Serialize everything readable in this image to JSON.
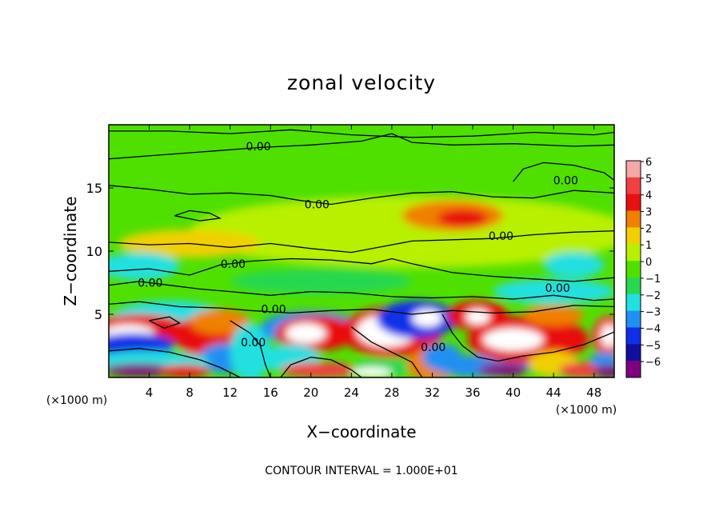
{
  "chart_data": {
    "type": "heatmap",
    "title": "zonal velocity",
    "xlabel": "X−coordinate",
    "ylabel": "Z−coordinate",
    "x_unit_left": "(×1000 m)",
    "x_unit_right": "(×1000 m)",
    "footer": "CONTOUR INTERVAL = 1.000E+01",
    "xlim": [
      0,
      50
    ],
    "ylim": [
      0,
      20
    ],
    "x_ticks": [
      4,
      8,
      12,
      16,
      20,
      24,
      28,
      32,
      36,
      40,
      44,
      48
    ],
    "y_ticks": [
      5,
      10,
      15
    ],
    "colorbar": {
      "levels": [
        6,
        5,
        4,
        3,
        2,
        1,
        0,
        -1,
        -2,
        -3,
        -4,
        -5,
        -6
      ],
      "labels": [
        "6",
        "5",
        "4",
        "3",
        "2",
        "1",
        "0",
        "−1",
        "−2",
        "−3",
        "−4",
        "−5",
        "−6"
      ],
      "colors": [
        "#f5a8a8",
        "#f04040",
        "#e81010",
        "#f08000",
        "#f0d000",
        "#b8f000",
        "#50e000",
        "#28d850",
        "#20e0e0",
        "#2090f0",
        "#1030e8",
        "#1010a0",
        "#800080"
      ]
    },
    "contour_labels": [
      {
        "text": "0.00",
        "x": 14.8,
        "z": 18.3
      },
      {
        "text": "0.00",
        "x": 45.2,
        "z": 15.6
      },
      {
        "text": "0.00",
        "x": 20.6,
        "z": 13.7
      },
      {
        "text": "0.00",
        "x": 38.8,
        "z": 11.2
      },
      {
        "text": "0.00",
        "x": 12.3,
        "z": 9.0
      },
      {
        "text": "0.00",
        "x": 4.1,
        "z": 7.5
      },
      {
        "text": "0.00",
        "x": 44.4,
        "z": 7.1
      },
      {
        "text": "0.00",
        "x": 16.3,
        "z": 5.4
      },
      {
        "text": "0.00",
        "x": 14.3,
        "z": 2.8
      },
      {
        "text": "0.00",
        "x": 32.1,
        "z": 2.4
      }
    ],
    "field_blobs": [
      {
        "x": 25,
        "z": 15.5,
        "rx": 25,
        "rz": 3.5,
        "v": 0
      },
      {
        "x": 30,
        "z": 11.5,
        "rx": 22,
        "rz": 2.8,
        "v": 1
      },
      {
        "x": 34,
        "z": 12.8,
        "rx": 5,
        "rz": 1.2,
        "v": 3
      },
      {
        "x": 35,
        "z": 12.6,
        "rx": 2.5,
        "rz": 0.7,
        "v": 4
      },
      {
        "x": 8,
        "z": 10.6,
        "rx": 7,
        "rz": 1.1,
        "v": 2
      },
      {
        "x": 3,
        "z": 8.8,
        "rx": 4,
        "rz": 1.1,
        "v": -2
      },
      {
        "x": 46,
        "z": 8.9,
        "rx": 3,
        "rz": 1.0,
        "v": -2
      },
      {
        "x": 21,
        "z": 7.6,
        "rx": 9,
        "rz": 1.0,
        "v": -1
      },
      {
        "x": 44,
        "z": 6.8,
        "rx": 6,
        "rz": 1.0,
        "v": -2
      },
      {
        "x": 6,
        "z": 4.5,
        "rx": 6,
        "rz": 1.6,
        "v": -2
      },
      {
        "x": 3,
        "z": 3.7,
        "rx": 5,
        "rz": 1.3,
        "v": 4
      },
      {
        "x": 2,
        "z": 3.5,
        "rx": 2.5,
        "rz": 0.7,
        "v": 6
      },
      {
        "x": 2.5,
        "z": 2.6,
        "rx": 4,
        "rz": 0.9,
        "v": -4
      },
      {
        "x": 9.5,
        "z": 3.3,
        "rx": 3,
        "rz": 1.6,
        "v": 4
      },
      {
        "x": 11,
        "z": 4.4,
        "rx": 3,
        "rz": 1.0,
        "v": 3
      },
      {
        "x": 11.5,
        "z": 1.5,
        "rx": 2.5,
        "rz": 1.2,
        "v": -3
      },
      {
        "x": 4,
        "z": 1.2,
        "rx": 6,
        "rz": 0.9,
        "v": -2
      },
      {
        "x": 3,
        "z": 0.6,
        "rx": 3.5,
        "rz": 0.5,
        "v": -6
      },
      {
        "x": 7.5,
        "z": 0.5,
        "rx": 2.5,
        "rz": 0.5,
        "v": 4
      },
      {
        "x": 14,
        "z": 2.0,
        "rx": 2,
        "rz": 2.3,
        "v": -2
      },
      {
        "x": 20,
        "z": 3.9,
        "rx": 5,
        "rz": 1.4,
        "v": -3
      },
      {
        "x": 20.5,
        "z": 3.5,
        "rx": 4,
        "rz": 1.4,
        "v": 4
      },
      {
        "x": 19.5,
        "z": 3.5,
        "rx": 2,
        "rz": 0.8,
        "v": 6
      },
      {
        "x": 18,
        "z": 1.5,
        "rx": 3,
        "rz": 1.1,
        "v": -2
      },
      {
        "x": 21,
        "z": 0.6,
        "rx": 4,
        "rz": 0.6,
        "v": 5
      },
      {
        "x": 28,
        "z": 3.6,
        "rx": 5,
        "rz": 2.0,
        "v": 4
      },
      {
        "x": 27.5,
        "z": 3.7,
        "rx": 3,
        "rz": 1.3,
        "v": 6
      },
      {
        "x": 27,
        "z": 0.8,
        "rx": 3,
        "rz": 0.8,
        "v": -1
      },
      {
        "x": 26,
        "z": 0.4,
        "rx": 2,
        "rz": 0.4,
        "v": 6
      },
      {
        "x": 30.5,
        "z": 4.6,
        "rx": 4,
        "rz": 1.5,
        "v": -4
      },
      {
        "x": 31.5,
        "z": 4.7,
        "rx": 1.5,
        "rz": 0.7,
        "v": 6
      },
      {
        "x": 32,
        "z": 1.0,
        "rx": 2.5,
        "rz": 1.3,
        "v": 3
      },
      {
        "x": 33,
        "z": 1.6,
        "rx": 2,
        "rz": 1.1,
        "v": -3
      },
      {
        "x": 36.5,
        "z": 4.9,
        "rx": 3,
        "rz": 1.2,
        "v": 4
      },
      {
        "x": 36.5,
        "z": 4.8,
        "rx": 1.2,
        "rz": 0.6,
        "v": 6
      },
      {
        "x": 37,
        "z": 0.9,
        "rx": 5,
        "rz": 0.9,
        "v": -3
      },
      {
        "x": 39,
        "z": 0.6,
        "rx": 2.5,
        "rz": 0.5,
        "v": -6
      },
      {
        "x": 41.5,
        "z": 3.0,
        "rx": 6,
        "rz": 1.9,
        "v": 4
      },
      {
        "x": 40,
        "z": 3.0,
        "rx": 3,
        "rz": 0.9,
        "v": 6
      },
      {
        "x": 44,
        "z": 4.9,
        "rx": 3,
        "rz": 0.8,
        "v": 3
      },
      {
        "x": 44,
        "z": 1.1,
        "rx": 2.5,
        "rz": 1.0,
        "v": 2
      },
      {
        "x": 47,
        "z": 0.6,
        "rx": 2.5,
        "rz": 0.6,
        "v": 5
      },
      {
        "x": 49.4,
        "z": 3.3,
        "rx": 1.6,
        "rz": 1.6,
        "v": 5
      },
      {
        "x": 49.5,
        "z": 3.3,
        "rx": 0.8,
        "rz": 0.9,
        "v": 6
      },
      {
        "x": 49,
        "z": 1.4,
        "rx": 1.5,
        "rz": 0.6,
        "v": -3
      },
      {
        "x": 49.5,
        "z": 0.5,
        "rx": 1.5,
        "rz": 0.5,
        "v": -6
      }
    ],
    "contour_lines": [
      [
        [
          0,
          19.5
        ],
        [
          6,
          19.5
        ],
        [
          12,
          19.3
        ],
        [
          18,
          19.6
        ],
        [
          24,
          19.2
        ],
        [
          30,
          19.0
        ],
        [
          36,
          19.1
        ],
        [
          42,
          19.4
        ],
        [
          48,
          19.2
        ],
        [
          50,
          19.4
        ]
      ],
      [
        [
          0,
          17.3
        ],
        [
          5,
          17.6
        ],
        [
          10,
          17.9
        ],
        [
          15,
          18.2
        ],
        [
          20,
          18.4
        ],
        [
          25,
          18.7
        ],
        [
          28,
          19.3
        ],
        [
          30,
          18.6
        ],
        [
          34,
          18.4
        ],
        [
          40,
          18.5
        ],
        [
          46,
          18.3
        ],
        [
          50,
          18.4
        ]
      ],
      [
        [
          0,
          15.2
        ],
        [
          4,
          14.9
        ],
        [
          8,
          14.5
        ],
        [
          12,
          14.6
        ],
        [
          16,
          14.4
        ],
        [
          19,
          14.0
        ],
        [
          22,
          13.7
        ],
        [
          26,
          14.2
        ],
        [
          30,
          14.6
        ],
        [
          34,
          14.7
        ],
        [
          38,
          14.3
        ],
        [
          42,
          14.2
        ],
        [
          46,
          14.8
        ],
        [
          50,
          14.6
        ]
      ],
      [
        [
          40,
          15.5
        ],
        [
          41,
          16.5
        ],
        [
          43,
          17.0
        ],
        [
          46,
          16.8
        ],
        [
          49,
          16.2
        ],
        [
          50,
          15.6
        ]
      ],
      [
        [
          6.5,
          12.8
        ],
        [
          8,
          13.2
        ],
        [
          10,
          13.0
        ],
        [
          11,
          12.6
        ],
        [
          9,
          12.4
        ],
        [
          6.5,
          12.8
        ]
      ],
      [
        [
          0,
          10.7
        ],
        [
          4,
          10.5
        ],
        [
          8,
          10.6
        ],
        [
          12,
          10.3
        ],
        [
          16,
          10.6
        ],
        [
          20,
          10.2
        ],
        [
          24,
          9.9
        ],
        [
          28,
          10.5
        ],
        [
          30,
          10.8
        ],
        [
          34,
          10.9
        ],
        [
          38,
          11.0
        ],
        [
          42,
          11.3
        ],
        [
          46,
          11.5
        ],
        [
          50,
          11.6
        ]
      ],
      [
        [
          0,
          8.4
        ],
        [
          4,
          8.6
        ],
        [
          8,
          8.1
        ],
        [
          11,
          8.9
        ],
        [
          14,
          9.2
        ],
        [
          18,
          9.4
        ],
        [
          22,
          9.3
        ],
        [
          26,
          9.0
        ],
        [
          28,
          9.4
        ],
        [
          30,
          9.0
        ],
        [
          34,
          8.3
        ],
        [
          38,
          8.0
        ],
        [
          42,
          7.8
        ],
        [
          46,
          7.6
        ],
        [
          50,
          7.9
        ]
      ],
      [
        [
          0,
          7.3
        ],
        [
          3,
          7.6
        ],
        [
          6,
          7.3
        ],
        [
          9,
          7.0
        ],
        [
          12,
          6.8
        ],
        [
          16,
          6.5
        ],
        [
          20,
          6.8
        ],
        [
          24,
          6.7
        ],
        [
          28,
          6.4
        ],
        [
          32,
          6.3
        ],
        [
          36,
          6.4
        ],
        [
          40,
          6.2
        ],
        [
          44,
          6.5
        ],
        [
          48,
          6.1
        ],
        [
          50,
          6.2
        ]
      ],
      [
        [
          0,
          5.8
        ],
        [
          3,
          6.0
        ],
        [
          7,
          5.6
        ],
        [
          11,
          5.5
        ],
        [
          14,
          5.3
        ],
        [
          18,
          5.1
        ],
        [
          22,
          5.3
        ],
        [
          26,
          5.4
        ],
        [
          30,
          5.0
        ],
        [
          34,
          5.3
        ],
        [
          38,
          5.1
        ],
        [
          42,
          5.2
        ],
        [
          46,
          5.7
        ],
        [
          50,
          5.6
        ]
      ],
      [
        [
          4,
          4.5
        ],
        [
          6,
          4.8
        ],
        [
          7,
          4.3
        ],
        [
          5.5,
          3.9
        ],
        [
          4,
          4.5
        ]
      ],
      [
        [
          12,
          4.5
        ],
        [
          14,
          3.5
        ],
        [
          15,
          2.5
        ],
        [
          15.5,
          1.0
        ],
        [
          16,
          0
        ]
      ],
      [
        [
          24,
          4.0
        ],
        [
          26,
          2.8
        ],
        [
          28,
          2.0
        ],
        [
          30,
          1.2
        ],
        [
          31,
          0
        ]
      ],
      [
        [
          33,
          5.0
        ],
        [
          34,
          3.5
        ],
        [
          35,
          2.5
        ],
        [
          36.5,
          1.6
        ],
        [
          38.5,
          1.3
        ],
        [
          41,
          1.7
        ],
        [
          44,
          2.0
        ],
        [
          47,
          2.6
        ],
        [
          50,
          3.6
        ]
      ],
      [
        [
          0,
          2.1
        ],
        [
          3,
          2.3
        ],
        [
          6,
          2.0
        ],
        [
          9,
          1.4
        ],
        [
          11,
          0.8
        ],
        [
          13,
          0
        ]
      ],
      [
        [
          17,
          0
        ],
        [
          18,
          1.0
        ],
        [
          20,
          1.6
        ],
        [
          22,
          1.4
        ],
        [
          24,
          0.6
        ],
        [
          25,
          0
        ]
      ]
    ]
  }
}
